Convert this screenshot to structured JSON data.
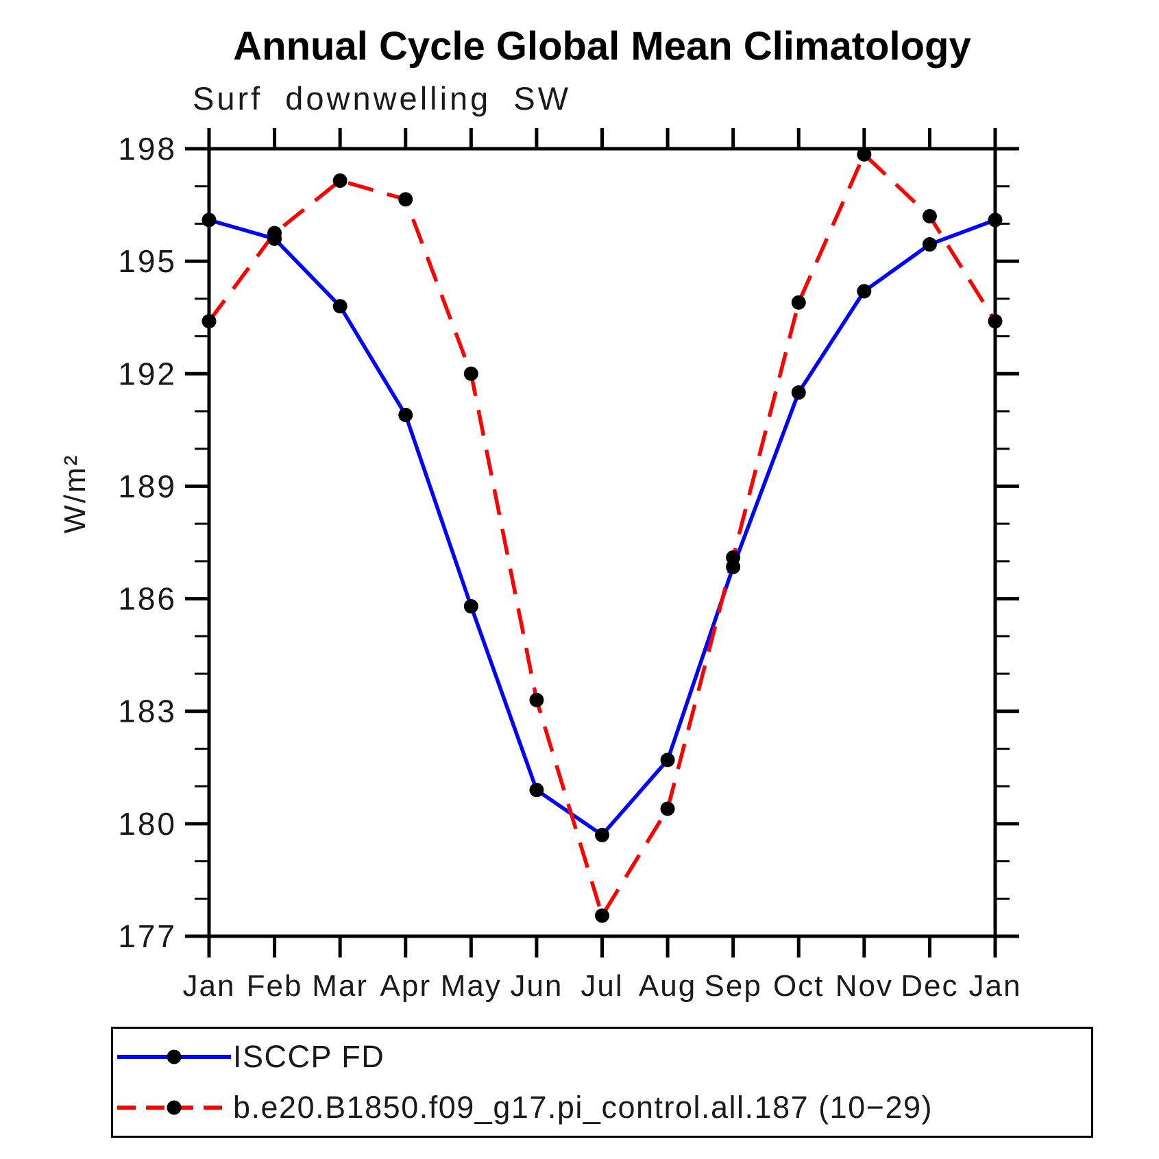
{
  "title": "Annual Cycle Global Mean Climatology",
  "subtitle": "Surf downwelling SW",
  "ylabel": "W/m²",
  "colors": {
    "axis": "#000000",
    "marker": "#000000",
    "series_obs": "#0000ff",
    "series_model": "#ff0000"
  },
  "chart_data": {
    "type": "line",
    "title": "Annual Cycle Global Mean Climatology",
    "subtitle": "Surf downwelling SW",
    "ylabel": "W/m²",
    "x_categories": [
      "Jan",
      "Feb",
      "Mar",
      "Apr",
      "May",
      "Jun",
      "Jul",
      "Aug",
      "Sep",
      "Oct",
      "Nov",
      "Dec",
      "Jan"
    ],
    "ylim": [
      177,
      198
    ],
    "ytick_major": [
      177,
      180,
      183,
      186,
      189,
      192,
      195,
      198
    ],
    "ytick_minor_step": 1,
    "grid": false,
    "legend_position": "bottom-left-box",
    "series": [
      {
        "name": "ISCCP FD",
        "color": "#0000ff",
        "style": "solid",
        "marker": "black-dot",
        "values": [
          196.1,
          195.6,
          193.8,
          190.9,
          185.8,
          180.9,
          179.7,
          181.7,
          186.85,
          191.5,
          194.2,
          195.45,
          196.1
        ]
      },
      {
        "name": "b.e20.B1850.f09_g17.pi_control.all.187 (10−29)",
        "color": "#ff0000",
        "style": "dashed",
        "marker": "black-dot",
        "values": [
          193.4,
          195.75,
          197.15,
          196.65,
          192.0,
          183.3,
          177.55,
          180.4,
          187.1,
          193.9,
          197.85,
          196.2,
          193.4
        ]
      }
    ]
  }
}
